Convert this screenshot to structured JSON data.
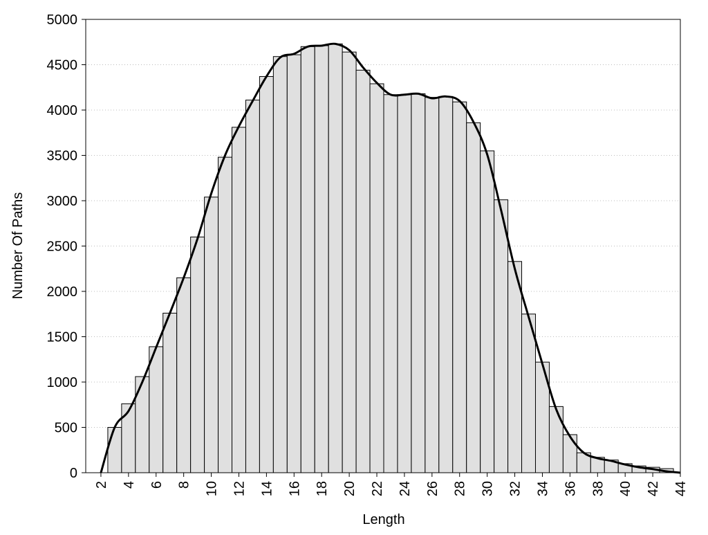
{
  "chart_data": {
    "type": "histogram",
    "x_label": "Length",
    "y_label": "Number Of Paths",
    "xlim": [
      0.9,
      44
    ],
    "ylim": [
      0,
      5000
    ],
    "xticks": [
      2,
      4,
      6,
      8,
      10,
      12,
      14,
      16,
      18,
      20,
      22,
      24,
      26,
      28,
      30,
      32,
      34,
      36,
      38,
      40,
      42,
      44
    ],
    "yticks": [
      0,
      500,
      1000,
      1500,
      2000,
      2500,
      3000,
      3500,
      4000,
      4500,
      5000
    ],
    "grid": true,
    "series": [
      {
        "type": "bar",
        "color": "#e0e0e0",
        "x": [
          3,
          4,
          5,
          6,
          7,
          8,
          9,
          10,
          11,
          12,
          13,
          14,
          15,
          16,
          17,
          18,
          19,
          20,
          21,
          22,
          23,
          24,
          25,
          26,
          27,
          28,
          29,
          30,
          31,
          32,
          33,
          34,
          35,
          36,
          37,
          38,
          39,
          40,
          41,
          42,
          43
        ],
        "values": [
          500,
          760,
          1060,
          1390,
          1760,
          2150,
          2600,
          3040,
          3480,
          3810,
          4110,
          4370,
          4590,
          4610,
          4700,
          4710,
          4730,
          4640,
          4440,
          4290,
          4170,
          4170,
          4180,
          4140,
          4150,
          4090,
          3860,
          3550,
          3010,
          2330,
          1750,
          1220,
          730,
          420,
          220,
          170,
          140,
          100,
          75,
          60,
          45
        ]
      },
      {
        "type": "line",
        "color": "#000000",
        "x": [
          2,
          3,
          4,
          5,
          6,
          7,
          8,
          9,
          10,
          11,
          12,
          13,
          14,
          15,
          16,
          17,
          18,
          19,
          20,
          21,
          22,
          23,
          24,
          25,
          26,
          27,
          28,
          29,
          30,
          31,
          32,
          33,
          34,
          35,
          36,
          37,
          38,
          39,
          40,
          41,
          42,
          43,
          44
        ],
        "values": [
          0,
          500,
          680,
          1000,
          1380,
          1760,
          2150,
          2580,
          3080,
          3500,
          3820,
          4100,
          4370,
          4580,
          4620,
          4700,
          4710,
          4730,
          4660,
          4470,
          4300,
          4170,
          4170,
          4180,
          4130,
          4150,
          4100,
          3870,
          3510,
          2900,
          2250,
          1720,
          1200,
          700,
          400,
          220,
          160,
          130,
          90,
          60,
          40,
          15,
          0
        ]
      }
    ]
  }
}
